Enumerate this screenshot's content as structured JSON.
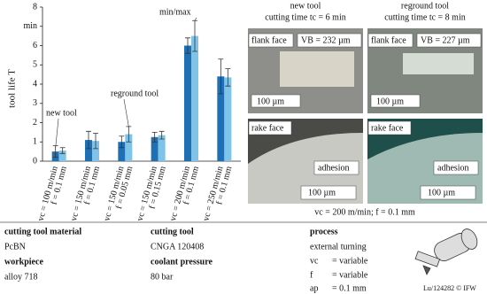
{
  "chart_data": {
    "type": "bar",
    "y_label": "tool life T",
    "error_label": "min/max",
    "categories": [
      [
        "vc = 100 m/min",
        "f = 0.1 mm"
      ],
      [
        "vc = 150 m/min",
        "f = 0.1 mm"
      ],
      [
        "vc = 150 m/min",
        "f = 0.05 mm"
      ],
      [
        "vc = 150 m/min",
        "f = 0.15 mm"
      ],
      [
        "vc = 200 m/min",
        "f = 0.1 mm"
      ],
      [
        "vc = 250 m/min",
        "f = 0.1 mm"
      ]
    ],
    "series": [
      {
        "name": "new tool",
        "color": "#1f6fb5",
        "values": [
          0.5,
          1.1,
          1.0,
          1.25,
          6.0,
          4.4
        ],
        "errors": [
          0.3,
          0.45,
          0.3,
          0.25,
          0.4,
          0.9
        ]
      },
      {
        "name": "reground tool",
        "color": "#7fc4e8",
        "values": [
          0.55,
          1.05,
          1.4,
          1.35,
          6.5,
          4.35
        ],
        "errors": [
          0.15,
          0.4,
          0.4,
          0.2,
          0.8,
          0.45
        ]
      }
    ],
    "ylim": [
      0,
      8
    ],
    "yticks": [
      0,
      1,
      2,
      3,
      4,
      5,
      6,
      {
        "value": 7,
        "label": "min"
      },
      8
    ]
  },
  "images": {
    "new_title": "new tool",
    "new_time": "cutting time tc = 6 min",
    "reground_title": "reground tool",
    "reground_time": "cutting time tc = 8 min",
    "flank": "flank face",
    "rake": "rake face",
    "vb_new": "VB = 232 µm",
    "vb_reground": "VB = 227 µm",
    "scale": "100 µm",
    "adhesion": "adhesion",
    "caption": "vc = 200 m/min; f  = 0.1 mm"
  },
  "details": {
    "material_h": "cutting tool material",
    "material": "PcBN",
    "workpiece_h": "workpiece",
    "workpiece": "alloy 718",
    "tool_h": "cutting tool",
    "tool": "CNGA 120408",
    "coolant_h": "coolant pressure",
    "coolant": "80 bar",
    "process_h": "process",
    "process": "external turning",
    "params": [
      [
        "vc",
        "= variable"
      ],
      [
        "f",
        "= variable"
      ],
      [
        "ap",
        "= 0.1 mm"
      ]
    ],
    "credit": "Lu/124282 © IFW"
  }
}
